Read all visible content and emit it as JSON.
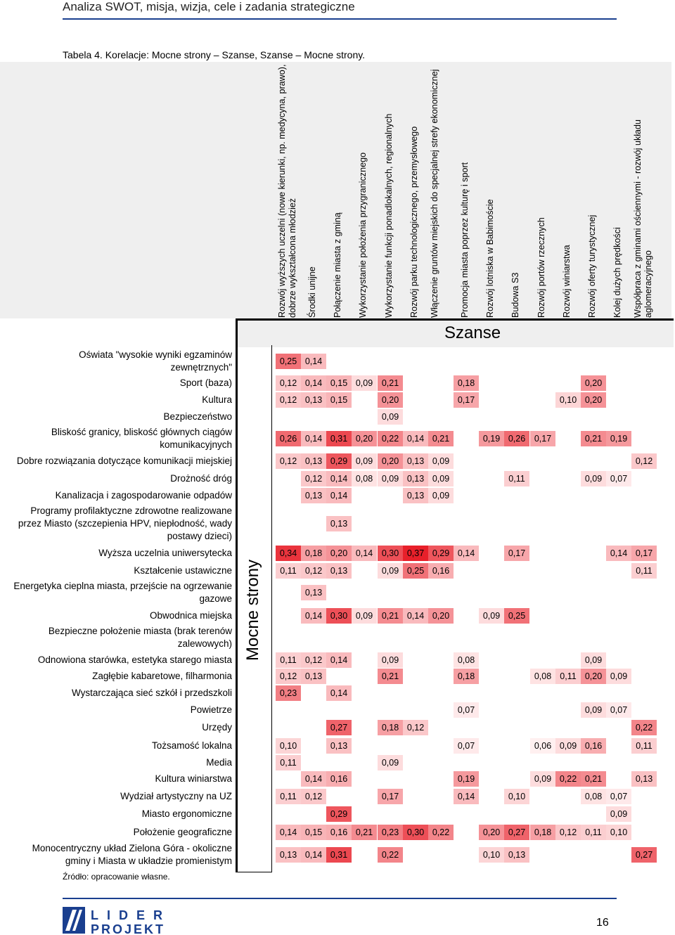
{
  "header_title": "Analiza SWOT, misja, wizja, cele i zadania strategiczne",
  "caption": "Tabela 4. Korelacje: Mocne strony – Szanse, Szanse – Mocne strony.",
  "szanse_label": "Szanse",
  "mocne_label": "Mocne strony",
  "columns": [
    "Rozwój wyższych uczelni (nowe kierunki, np. medycyna, prawo), dobrze wykształcona młodzież",
    "Środki unijne",
    "Połączenie miasta z gminą",
    "Wykorzystanie położenia przygranicznego",
    "Wykorzystanie funkcji ponadlokalnych, regionalnych",
    "Rozwój parku technologicznego, przemysłowego",
    "Włączenie gruntów miejskich do specjalnej strefy ekonomicznej",
    "Promocja miasta poprzez kulturę i sport",
    "Rozwój lotniska w Babimoście",
    "Budowa S3",
    "Rozwój portów rzecznych",
    "Rozwój winiarstwa",
    "Rozwój oferty turystycznej",
    "Kolej dużych prędkości",
    "Współpraca z gminami ościennymi - rozwój układu aglomeracyjnego"
  ],
  "rows": [
    {
      "label": "Oświata \"wysokie wyniki egzaminów\nzewnętrznych\"",
      "values": [
        "0,25",
        "0,14",
        "",
        "",
        "",
        "",
        "",
        "",
        "",
        "",
        "",
        "",
        "",
        "",
        ""
      ]
    },
    {
      "label": "Sport (baza)",
      "values": [
        "0,12",
        "0,14",
        "0,15",
        "0,09",
        "0,21",
        "",
        "",
        "0,18",
        "",
        "",
        "",
        "",
        "0,20",
        "",
        ""
      ]
    },
    {
      "label": "Kultura",
      "values": [
        "0,12",
        "0,13",
        "0,15",
        "",
        "0,20",
        "",
        "",
        "0,17",
        "",
        "",
        "",
        "0,10",
        "0,20",
        "",
        ""
      ]
    },
    {
      "label": "Bezpieczeństwo",
      "values": [
        "",
        "",
        "",
        "",
        "0,09",
        "",
        "",
        "",
        "",
        "",
        "",
        "",
        "",
        "",
        ""
      ]
    },
    {
      "label": "Bliskość granicy, bliskość głównych ciągów\nkomunikacyjnych",
      "values": [
        "0,26",
        "0,14",
        "0,31",
        "0,20",
        "0,22",
        "0,14",
        "0,21",
        "",
        "0,19",
        "0,26",
        "0,17",
        "",
        "0,21",
        "0,19",
        ""
      ]
    },
    {
      "label": "Dobre rozwiązania dotyczące komunikacji miejskiej",
      "values": [
        "0,12",
        "0,13",
        "0,29",
        "0,09",
        "0,20",
        "0,13",
        "0,09",
        "",
        "",
        "",
        "",
        "",
        "",
        "",
        "0,12"
      ]
    },
    {
      "label": "Drożność dróg",
      "values": [
        "",
        "0,12",
        "0,14",
        "0,08",
        "0,09",
        "0,13",
        "0,09",
        "",
        "",
        "0,11",
        "",
        "",
        "0,09",
        "0,07",
        ""
      ]
    },
    {
      "label": "Kanalizacja i zagospodarowanie odpadów",
      "values": [
        "",
        "0,13",
        "0,14",
        "",
        "",
        "0,13",
        "0,09",
        "",
        "",
        "",
        "",
        "",
        "",
        "",
        ""
      ]
    },
    {
      "label": "Programy profilaktyczne zdrowotne realizowane\nprzez Miasto (szczepienia HPV, niepłodność, wady\npostawy dzieci)",
      "values": [
        "",
        "",
        "0,13",
        "",
        "",
        "",
        "",
        "",
        "",
        "",
        "",
        "",
        "",
        "",
        ""
      ]
    },
    {
      "label": "Wyższa uczelnia uniwersytecka",
      "values": [
        "0,34",
        "0,18",
        "0,20",
        "0,14",
        "0,30",
        "0,37",
        "0,29",
        "0,14",
        "",
        "0,17",
        "",
        "",
        "",
        "0,14",
        "0,17"
      ]
    },
    {
      "label": "Kształcenie ustawiczne",
      "values": [
        "0,11",
        "0,12",
        "0,13",
        "",
        "0,09",
        "0,25",
        "0,16",
        "",
        "",
        "",
        "",
        "",
        "",
        "",
        "0,11"
      ]
    },
    {
      "label": "Energetyka cieplna miasta, przejście na ogrzewanie\ngazowe",
      "values": [
        "",
        "0,13",
        "",
        "",
        "",
        "",
        "",
        "",
        "",
        "",
        "",
        "",
        "",
        "",
        ""
      ]
    },
    {
      "label": "Obwodnica miejska",
      "values": [
        "",
        "0,14",
        "0,30",
        "0,09",
        "0,21",
        "0,14",
        "0,20",
        "",
        "0,09",
        "0,25",
        "",
        "",
        "",
        "",
        ""
      ]
    },
    {
      "label": "Bezpieczne położenie miasta (brak terenów\nzalewowych)",
      "values": [
        "",
        "",
        "",
        "",
        "",
        "",
        "",
        "",
        "",
        "",
        "",
        "",
        "",
        "",
        ""
      ]
    },
    {
      "label": "Odnowiona starówka, estetyka starego miasta",
      "values": [
        "0,11",
        "0,12",
        "0,14",
        "",
        "0,09",
        "",
        "",
        "0,08",
        "",
        "",
        "",
        "",
        "0,09",
        "",
        ""
      ]
    },
    {
      "label": "Zagłębie kabaretowe, filharmonia",
      "values": [
        "0,12",
        "0,13",
        "",
        "",
        "0,21",
        "",
        "",
        "0,18",
        "",
        "",
        "0,08",
        "0,11",
        "0,20",
        "0,09",
        ""
      ]
    },
    {
      "label": "Wystarczająca sieć szkół i przedszkoli",
      "values": [
        "0,23",
        "",
        "0,14",
        "",
        "",
        "",
        "",
        "",
        "",
        "",
        "",
        "",
        "",
        "",
        ""
      ]
    },
    {
      "label": "Powietrze",
      "values": [
        "",
        "",
        "",
        "",
        "",
        "",
        "",
        "0,07",
        "",
        "",
        "",
        "",
        "0,09",
        "0,07",
        ""
      ]
    },
    {
      "label": "Urzędy",
      "values": [
        "",
        "",
        "0,27",
        "",
        "0,18",
        "0,12",
        "",
        "",
        "",
        "",
        "",
        "",
        "",
        "",
        "0,22"
      ]
    },
    {
      "label": "Tożsamość lokalna",
      "values": [
        "0,10",
        "",
        "0,13",
        "",
        "",
        "",
        "",
        "0,07",
        "",
        "",
        "0,06",
        "0,09",
        "0,16",
        "",
        "0,11"
      ]
    },
    {
      "label": "Media",
      "values": [
        "0,11",
        "",
        "",
        "",
        "0,09",
        "",
        "",
        "",
        "",
        "",
        "",
        "",
        "",
        "",
        ""
      ]
    },
    {
      "label": "Kultura winiarstwa",
      "values": [
        "",
        "0,14",
        "0,16",
        "",
        "",
        "",
        "",
        "0,19",
        "",
        "",
        "0,09",
        "0,22",
        "0,21",
        "",
        "0,13"
      ]
    },
    {
      "label": "Wydział artystyczny na UZ",
      "values": [
        "0,11",
        "0,12",
        "",
        "",
        "0,17",
        "",
        "",
        "0,14",
        "",
        "0,10",
        "",
        "",
        "0,08",
        "0,07",
        ""
      ]
    },
    {
      "label": "Miasto ergonomiczne",
      "values": [
        "",
        "",
        "0,29",
        "",
        "",
        "",
        "",
        "",
        "",
        "",
        "",
        "",
        "",
        "0,09",
        ""
      ]
    },
    {
      "label": "Położenie geograficzne",
      "values": [
        "0,14",
        "0,15",
        "0,16",
        "0,21",
        "0,23",
        "0,30",
        "0,22",
        "",
        "0,20",
        "0,27",
        "0,18",
        "0,12",
        "0,11",
        "0,10",
        ""
      ]
    },
    {
      "label": "Monocentryczny układ Zielona Góra - okoliczne\ngminy i Miasta w układzie promienistym",
      "values": [
        "0,13",
        "0,14",
        "0,31",
        "",
        "0,22",
        "",
        "",
        "",
        "0,10",
        "0,13",
        "",
        "",
        "",
        "",
        "0,27"
      ]
    }
  ],
  "source": "Źródło: opracowanie własne.",
  "logo_text": [
    "LIDER",
    "PROJEKT"
  ],
  "page_number": "16",
  "colors": {
    "accent": "#1a3f8f",
    "heat_max": "#e8202a"
  }
}
